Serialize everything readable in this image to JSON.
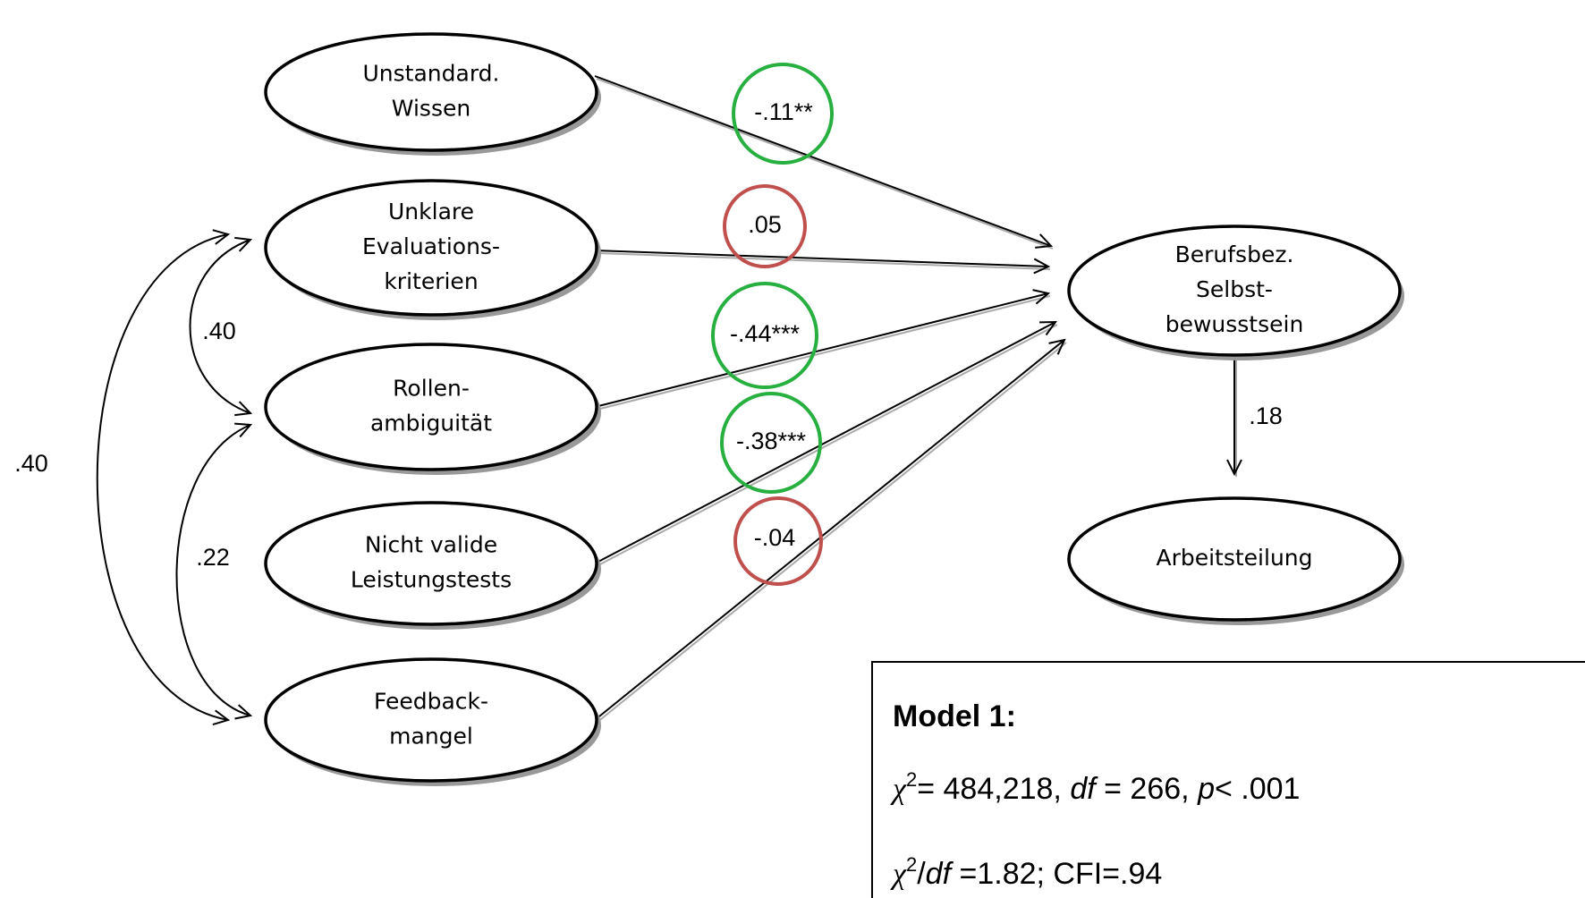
{
  "nodes": [
    {
      "label": [
        "Unstandard.",
        "Wissen"
      ]
    },
    {
      "label": [
        "Unklare",
        "Evaluations-",
        "kriterien"
      ]
    },
    {
      "label": [
        "Rollen-",
        "ambiguität"
      ]
    },
    {
      "label": [
        "Nicht valide",
        "Leistungstests"
      ]
    },
    {
      "label": [
        "Feedback-",
        "mangel"
      ]
    },
    {
      "label": [
        "Berufsbez.",
        "Selbst-",
        "bewusstsein"
      ]
    },
    {
      "label": [
        "Arbeitsteilung"
      ]
    }
  ],
  "paths": [
    {
      "label": "-.11**"
    },
    {
      "label": ".05"
    },
    {
      "label": "-.44***"
    },
    {
      "label": "-.38***"
    },
    {
      "label": "-.04"
    },
    {
      "label": ".18"
    }
  ],
  "correlations": [
    {
      "label": ".40"
    },
    {
      "label": ".40"
    },
    {
      "label": ".22"
    }
  ],
  "model": {
    "title": "Model 1:",
    "line1": [
      "χ",
      "2",
      "= 484,218, ",
      "df",
      " = 266, ",
      "p",
      "< .001"
    ],
    "line2": [
      "χ",
      "2",
      "/",
      "df",
      " =1.82; CFI=.94"
    ]
  }
}
